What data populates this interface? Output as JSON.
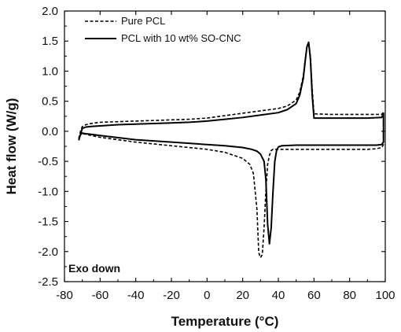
{
  "chart_data": {
    "type": "line",
    "xlabel": "Temperature (°C)",
    "ylabel": "Heat flow (W/g)",
    "xlim": [
      -80,
      100
    ],
    "ylim": [
      -2.5,
      2.0
    ],
    "x_ticks": [
      -80,
      -60,
      -40,
      -20,
      0,
      20,
      40,
      60,
      80,
      100
    ],
    "x_tick_labels": [
      "-80",
      "-60",
      "-40",
      "-20",
      "0",
      "20",
      "40",
      "60",
      "80",
      "100"
    ],
    "y_ticks": [
      -2.5,
      -2.0,
      -1.5,
      -1.0,
      -0.5,
      0.0,
      0.5,
      1.0,
      1.5,
      2.0
    ],
    "y_tick_labels": [
      "-2.5",
      "-2.0",
      "-1.5",
      "-1.0",
      "-0.5",
      "0.0",
      "0.5",
      "1.0",
      "1.5",
      "2.0"
    ],
    "grid": false,
    "legend_position": "top-left",
    "annotation": "Exo down",
    "series": [
      {
        "name": "Pure PCL",
        "style": "dashed",
        "color": "#000000",
        "x": [
          -72,
          -71,
          -70,
          -68,
          -65,
          -60,
          -50,
          -40,
          -30,
          -20,
          -10,
          0,
          10,
          20,
          30,
          40,
          45,
          50,
          52,
          54,
          55,
          56,
          57,
          58,
          59,
          60,
          70,
          80,
          90,
          98,
          99,
          99,
          98,
          95,
          90,
          80,
          70,
          60,
          50,
          40,
          37,
          36,
          35,
          34,
          33,
          32,
          31,
          30,
          29,
          28,
          26,
          24,
          20,
          10,
          0,
          -20,
          -40,
          -60,
          -65,
          -68,
          -70,
          -71,
          -72
        ],
        "y": [
          -0.12,
          0.0,
          0.08,
          0.11,
          0.13,
          0.15,
          0.16,
          0.17,
          0.18,
          0.19,
          0.2,
          0.22,
          0.26,
          0.3,
          0.34,
          0.38,
          0.42,
          0.52,
          0.65,
          0.92,
          1.18,
          1.4,
          1.49,
          1.25,
          0.7,
          0.29,
          0.28,
          0.28,
          0.28,
          0.28,
          0.32,
          -0.22,
          -0.27,
          -0.29,
          -0.3,
          -0.3,
          -0.3,
          -0.3,
          -0.3,
          -0.3,
          -0.3,
          -0.32,
          -0.4,
          -0.55,
          -1.0,
          -1.6,
          -2.05,
          -2.1,
          -2.02,
          -1.3,
          -0.7,
          -0.55,
          -0.45,
          -0.35,
          -0.3,
          -0.24,
          -0.18,
          -0.1,
          -0.07,
          -0.05,
          -0.04,
          -0.06,
          -0.12
        ]
      },
      {
        "name": "PCL with 10 wt% SO-CNC",
        "style": "solid",
        "color": "#000000",
        "x": [
          -72,
          -71,
          -70,
          -68,
          -65,
          -60,
          -50,
          -40,
          -30,
          -20,
          -10,
          0,
          10,
          20,
          30,
          40,
          45,
          50,
          52,
          54,
          55,
          56,
          57,
          58,
          59,
          60,
          70,
          80,
          90,
          98,
          99,
          99,
          98,
          95,
          90,
          80,
          70,
          60,
          50,
          42,
          40,
          39,
          38,
          37,
          36,
          35,
          34,
          33,
          32,
          30,
          28,
          25,
          20,
          10,
          0,
          -20,
          -40,
          -60,
          -65,
          -68,
          -70,
          -71,
          -72
        ],
        "y": [
          -0.15,
          -0.05,
          0.05,
          0.07,
          0.08,
          0.09,
          0.11,
          0.12,
          0.13,
          0.14,
          0.15,
          0.17,
          0.2,
          0.23,
          0.27,
          0.31,
          0.36,
          0.46,
          0.6,
          0.88,
          1.15,
          1.4,
          1.48,
          1.2,
          0.6,
          0.22,
          0.22,
          0.22,
          0.22,
          0.23,
          0.3,
          -0.18,
          -0.22,
          -0.23,
          -0.23,
          -0.23,
          -0.23,
          -0.23,
          -0.23,
          -0.24,
          -0.26,
          -0.32,
          -0.5,
          -1.0,
          -1.6,
          -1.87,
          -1.55,
          -0.8,
          -0.5,
          -0.38,
          -0.33,
          -0.3,
          -0.27,
          -0.24,
          -0.22,
          -0.18,
          -0.14,
          -0.07,
          -0.05,
          -0.04,
          -0.03,
          -0.05,
          -0.15
        ]
      }
    ]
  }
}
